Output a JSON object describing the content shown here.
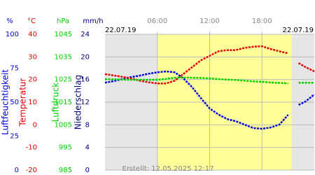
{
  "chart_data": {
    "type": "line",
    "date_left": "22.07.19",
    "date_right": "22.07.19",
    "footer": "Erstellt: 12.05.2025 12:17",
    "xlim": [
      0,
      24
    ],
    "xticks": [
      {
        "value": 6,
        "label": "06:00"
      },
      {
        "value": 12,
        "label": "12:00"
      },
      {
        "value": 18,
        "label": "18:00"
      }
    ],
    "daylight": [
      6,
      21.4
    ],
    "axes": [
      {
        "title": "Luftfeuchtigkeit",
        "unit": "%",
        "color": "#0000e0",
        "ylim": [
          0,
          100
        ],
        "yticks": [
          0,
          25,
          50,
          75,
          100
        ]
      },
      {
        "title": "Temperatur",
        "unit": "°C",
        "color": "#e00000",
        "ylim": [
          -20,
          40
        ],
        "yticks": [
          -20,
          -10,
          0,
          10,
          20,
          30,
          40
        ]
      },
      {
        "title": "Luftdruck",
        "unit": "hPa",
        "color": "#00d000",
        "ylim": [
          985,
          1045
        ],
        "yticks": [
          985,
          995,
          1005,
          1015,
          1025,
          1035,
          1045
        ]
      },
      {
        "title": "Niederschlag",
        "unit": "mm/h",
        "color": "#000080",
        "ylim": [
          0,
          24
        ],
        "yticks": [
          0,
          4,
          8,
          12,
          16,
          20,
          24
        ]
      }
    ],
    "x": [
      0,
      1,
      2,
      3,
      4,
      5,
      6,
      7,
      8,
      9,
      10,
      11,
      12,
      13,
      14,
      15,
      16,
      17,
      18,
      19,
      20,
      21,
      21.7,
      22.2,
      23,
      24
    ],
    "series": [
      {
        "axis": 0,
        "color": "#0000e0",
        "values": [
          64.4,
          65.5,
          67,
          68.5,
          69.6,
          71,
          72,
          72.7,
          72,
          67.5,
          61,
          53,
          45.4,
          41,
          37.6,
          36,
          33.5,
          31,
          30.4,
          31.4,
          33.5,
          40.7,
          null,
          48,
          50.5,
          55.7
        ]
      },
      {
        "axis": 1,
        "color": "#e00000",
        "values": [
          22.4,
          21.8,
          21.2,
          20.5,
          19.5,
          18.8,
          18.3,
          18.3,
          19.5,
          22.5,
          25.5,
          28.5,
          30.5,
          32.5,
          33,
          33,
          34,
          34.5,
          34.7,
          33.5,
          32.5,
          31.6,
          null,
          27.3,
          25.5,
          23.6
        ]
      },
      {
        "axis": 2,
        "color": "#00d000",
        "values": [
          1025.2,
          1025.1,
          1025,
          1024.9,
          1024.9,
          1024.9,
          1024.9,
          1025.3,
          1025.8,
          1025.9,
          1025.8,
          1025.7,
          1025.5,
          1025.2,
          1025,
          1024.8,
          1024.5,
          1024.2,
          1024,
          1023.7,
          1023.5,
          1023.3,
          null,
          1023.6,
          1023.6,
          1023.6
        ]
      }
    ]
  }
}
